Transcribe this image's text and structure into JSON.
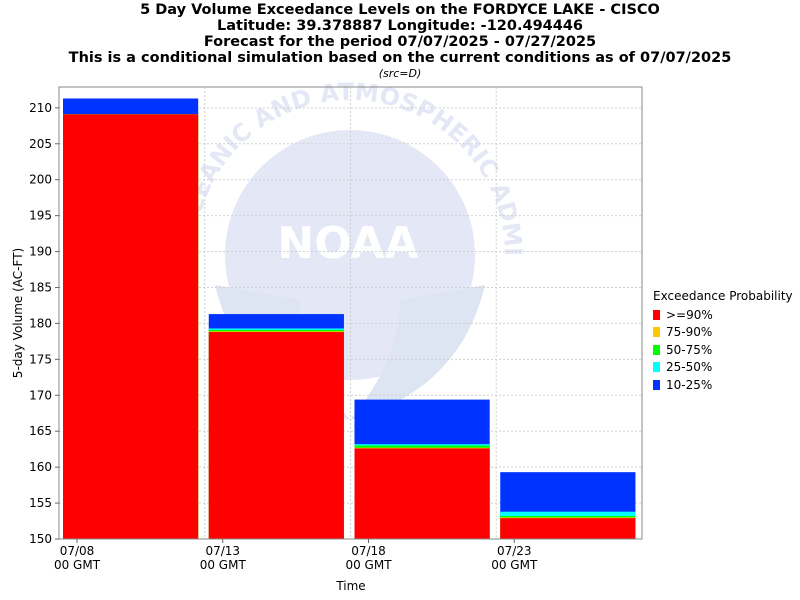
{
  "titles": {
    "line1": "5 Day Volume Exceedance Levels on the FORDYCE LAKE - CISCO",
    "line2": "Latitude: 39.378887 Longitude: -120.494446",
    "line3": "Forecast for the period 07/07/2025 - 07/27/2025",
    "line4": "This is a conditional simulation based on the current conditions as of 07/07/2025",
    "src": "(src=D)"
  },
  "watermark": {
    "ring_text": "OCEANIC AND ATMOSPHERIC ADMINISTRATION",
    "logo_text": "NOAA"
  },
  "colors": {
    "p90": "#ff0000",
    "p75": "#ffc800",
    "p50": "#00ff00",
    "p25": "#00ffff",
    "p10": "#0033ff",
    "grid": "#d0d0d0",
    "watermark": "#e4e8f6"
  },
  "chart_data": {
    "type": "bar",
    "stacked_levels": true,
    "categories": [
      "07/08 00 GMT",
      "07/13 00 GMT",
      "07/18 00 GMT",
      "07/23 00 GMT"
    ],
    "x_tick_labels": [
      {
        "date": "07/08",
        "time": "00 GMT"
      },
      {
        "date": "07/13",
        "time": "00 GMT"
      },
      {
        "date": "07/18",
        "time": "00 GMT"
      },
      {
        "date": "07/23",
        "time": "00 GMT"
      }
    ],
    "series": [
      {
        "name": ">=90%",
        "color": "#ff0000",
        "values": [
          209.1,
          178.8,
          162.6,
          152.9
        ]
      },
      {
        "name": "75-90%",
        "color": "#ffc800",
        "values": [
          209.1,
          178.9,
          162.7,
          153.0
        ]
      },
      {
        "name": "50-75%",
        "color": "#00ff00",
        "values": [
          209.1,
          179.1,
          163.0,
          153.2
        ]
      },
      {
        "name": "25-50%",
        "color": "#00ffff",
        "values": [
          209.1,
          179.3,
          163.2,
          153.8
        ]
      },
      {
        "name": "10-25%",
        "color": "#0033ff",
        "values": [
          211.3,
          181.3,
          169.4,
          159.3
        ]
      }
    ],
    "ylabel": "5-day Volume (AC-FT)",
    "xlabel": "Time",
    "ylim": [
      150,
      212.9
    ],
    "yticks": [
      150,
      155,
      160,
      165,
      170,
      175,
      180,
      185,
      190,
      195,
      200,
      205,
      210
    ],
    "grid": true,
    "legend_title": "Exceedance Probability",
    "legend_position": "right"
  }
}
